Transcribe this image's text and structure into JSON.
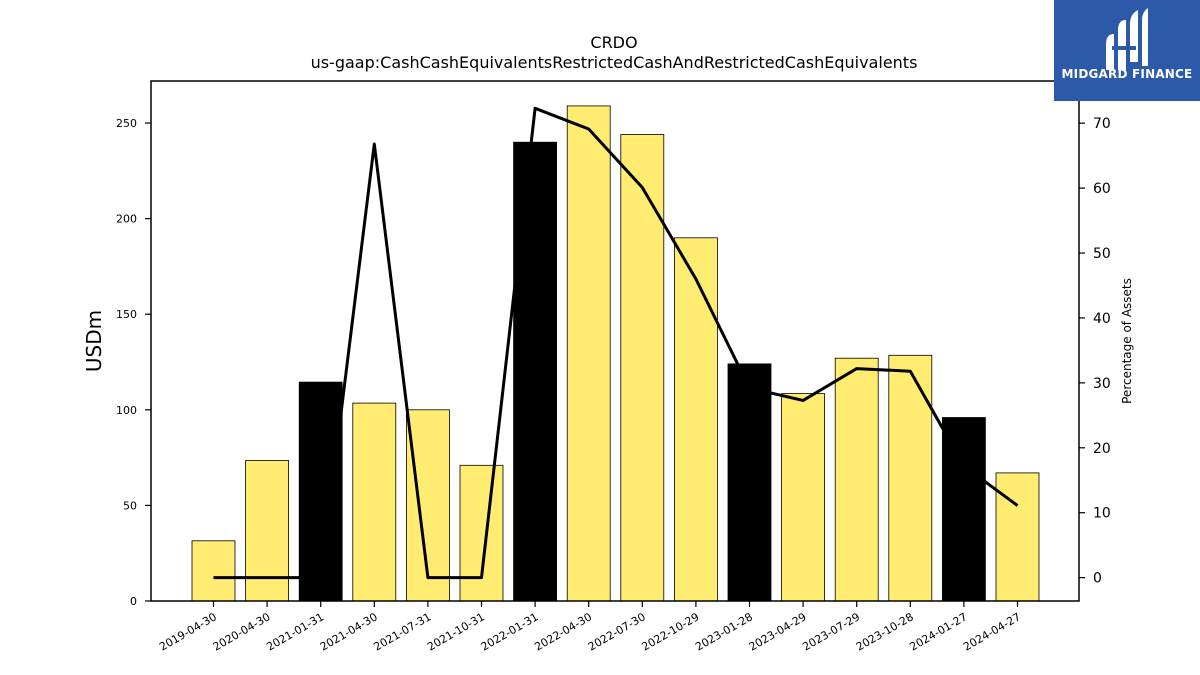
{
  "logo": {
    "text": "MIDGARD FINANCE",
    "icon": "midgard-logo-icon",
    "background": "#2c5aa8"
  },
  "colors": {
    "bar": "#ffec70",
    "highlight": "#000000",
    "line": "#000000"
  },
  "chart_data": {
    "type": "bar",
    "title": "CRDO",
    "subtitle": "us-gaap:CashCashEquivalentsRestrictedCashAndRestrictedCashEquivalents",
    "ylabel": "USDm",
    "ylabel_right": "Percentage of Assets",
    "ylim": [
      0,
      272
    ],
    "ylim_right": [
      -3.6,
      76.5
    ],
    "yticks": [
      0,
      50,
      100,
      150,
      200,
      250
    ],
    "yticks_right": [
      0,
      10,
      20,
      30,
      40,
      50,
      60,
      70
    ],
    "categories": [
      "2019-04-30",
      "2020-04-30",
      "2021-01-31",
      "2021-04-30",
      "2021-07-31",
      "2021-10-31",
      "2022-01-31",
      "2022-04-30",
      "2022-07-30",
      "2022-10-29",
      "2023-01-28",
      "2023-04-29",
      "2023-07-29",
      "2023-10-28",
      "2024-01-27",
      "2024-04-27"
    ],
    "series": [
      {
        "type": "bar",
        "axis": "left",
        "values": [
          31.5,
          73.5,
          114.5,
          103.5,
          100,
          71,
          240,
          259,
          244,
          190,
          124,
          108.5,
          127,
          128.5,
          96,
          67
        ],
        "highlighted": [
          false,
          false,
          true,
          false,
          false,
          false,
          true,
          false,
          false,
          false,
          true,
          false,
          false,
          false,
          true,
          false
        ]
      },
      {
        "type": "line",
        "axis": "right",
        "values": [
          0,
          0,
          0,
          66.8,
          0,
          0,
          72.3,
          69.1,
          60.1,
          46,
          29.2,
          27.3,
          32.2,
          31.8,
          17.2,
          11.1
        ]
      }
    ]
  }
}
